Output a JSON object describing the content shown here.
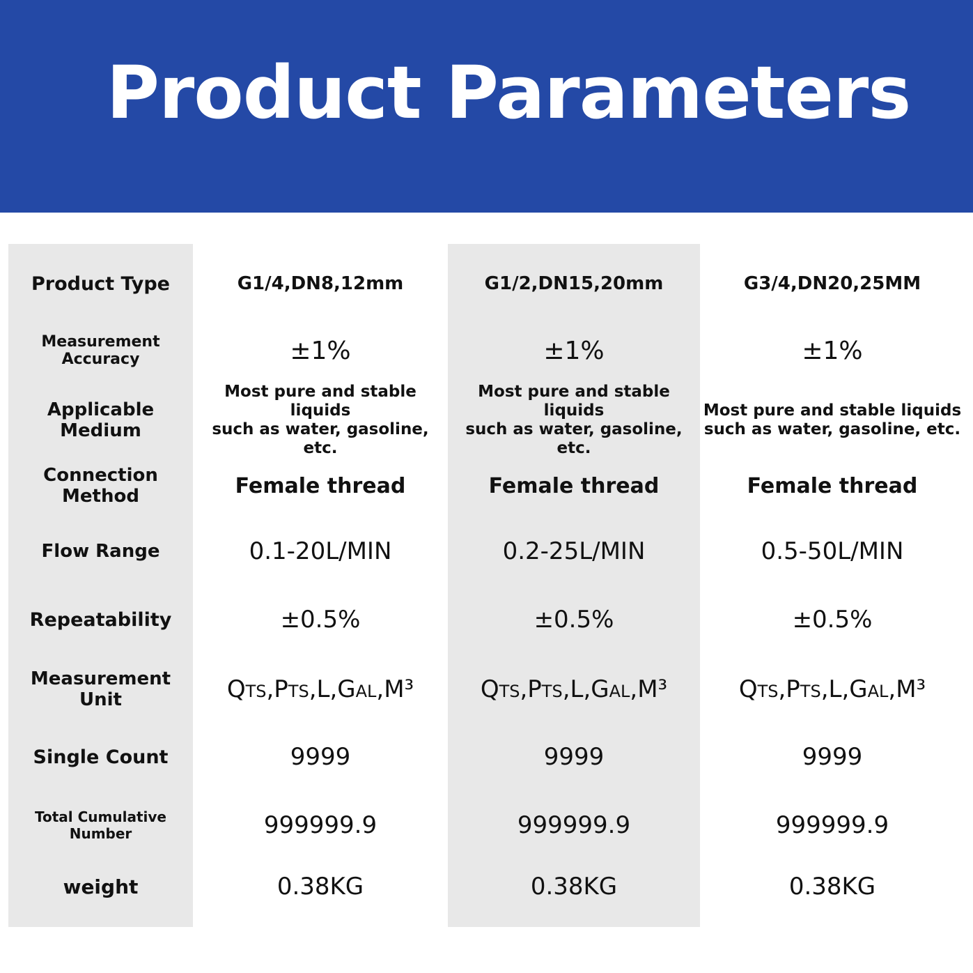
{
  "header": {
    "title": "Product Parameters"
  },
  "table": {
    "rows": [
      [
        "Product Type",
        "G1/4,DN8,12mm",
        "G1/2,DN15,20mm",
        "G3/4,DN20,25MM"
      ],
      [
        "Measurement Accuracy",
        "±1%",
        "±1%",
        "±1%"
      ],
      [
        "Applicable Medium",
        "Most pure and stable liquids\nsuch as water, gasoline, etc.",
        "Most pure and stable liquids\nsuch as water, gasoline, etc.",
        "Most pure and stable liquids\nsuch as water, gasoline, etc."
      ],
      [
        "Connection Method",
        "Female thread",
        "Female thread",
        "Female thread"
      ],
      [
        "Flow Range",
        "0.1-20L/MIN",
        "0.2-25L/MIN",
        "0.5-50L/MIN"
      ],
      [
        "Repeatability",
        "±0.5%",
        "±0.5%",
        "±0.5%"
      ],
      [
        "Measurement Unit",
        "Qts,Pts,L,Gal,M³",
        "Qts,Pts,L,Gal,M³",
        "Qts,Pts,L,Gal,M³"
      ],
      [
        "Single Count",
        "9999",
        "9999",
        "9999"
      ],
      [
        "Total Cumulative Number",
        "999999.9",
        "999999.9",
        "999999.9"
      ],
      [
        "weight",
        "0.38KG",
        "0.38KG",
        "0.38KG"
      ]
    ]
  }
}
